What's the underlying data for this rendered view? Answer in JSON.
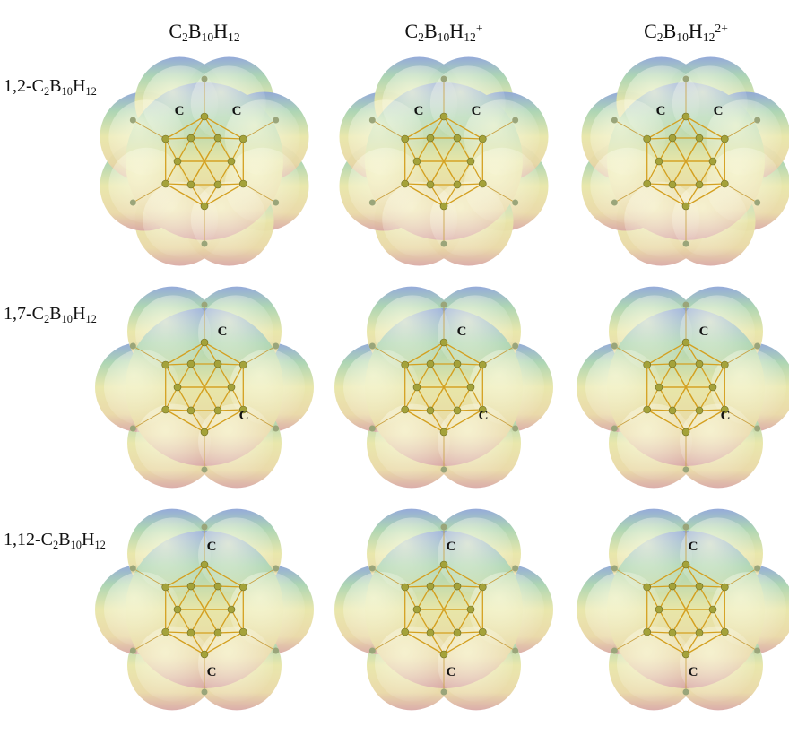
{
  "columns": [
    {
      "parts": [
        {
          "t": "C"
        },
        {
          "t": "2",
          "sub": true
        },
        {
          "t": "B"
        },
        {
          "t": "10",
          "sub": true
        },
        {
          "t": "H"
        },
        {
          "t": "12",
          "sub": true
        }
      ]
    },
    {
      "parts": [
        {
          "t": "C"
        },
        {
          "t": "2",
          "sub": true
        },
        {
          "t": "B"
        },
        {
          "t": "10",
          "sub": true
        },
        {
          "t": "H"
        },
        {
          "t": "12",
          "sub": true
        },
        {
          "t": "+",
          "sup": true
        }
      ]
    },
    {
      "parts": [
        {
          "t": "C"
        },
        {
          "t": "2",
          "sub": true
        },
        {
          "t": "B"
        },
        {
          "t": "10",
          "sub": true
        },
        {
          "t": "H"
        },
        {
          "t": "12",
          "sub": true
        },
        {
          "t": "2+",
          "sup": true
        }
      ]
    }
  ],
  "rows": [
    {
      "parts": [
        {
          "t": "1,2-C"
        },
        {
          "t": "2",
          "sub": true
        },
        {
          "t": "B"
        },
        {
          "t": "10",
          "sub": true
        },
        {
          "t": "H"
        },
        {
          "t": "12",
          "sub": true
        }
      ],
      "panels": [
        {
          "atom_labels": [
            "C",
            "C"
          ]
        },
        {
          "atom_labels": [
            "C",
            "C"
          ]
        },
        {
          "atom_labels": [
            "C",
            "C"
          ]
        }
      ]
    },
    {
      "parts": [
        {
          "t": "1,7-C"
        },
        {
          "t": "2",
          "sub": true
        },
        {
          "t": "B"
        },
        {
          "t": "10",
          "sub": true
        },
        {
          "t": "H"
        },
        {
          "t": "12",
          "sub": true
        }
      ],
      "panels": [
        {
          "atom_labels": [
            "C",
            "C"
          ]
        },
        {
          "atom_labels": [
            "C",
            "C"
          ]
        },
        {
          "atom_labels": [
            "C",
            "C"
          ]
        }
      ]
    },
    {
      "parts": [
        {
          "t": "1,12-C"
        },
        {
          "t": "2",
          "sub": true
        },
        {
          "t": "B"
        },
        {
          "t": "10",
          "sub": true
        },
        {
          "t": "H"
        },
        {
          "t": "12",
          "sub": true
        }
      ],
      "panels": [
        {
          "atom_labels": [
            "C",
            "C"
          ]
        },
        {
          "atom_labels": [
            "C",
            "C"
          ]
        },
        {
          "atom_labels": [
            "C",
            "C"
          ]
        }
      ]
    }
  ]
}
